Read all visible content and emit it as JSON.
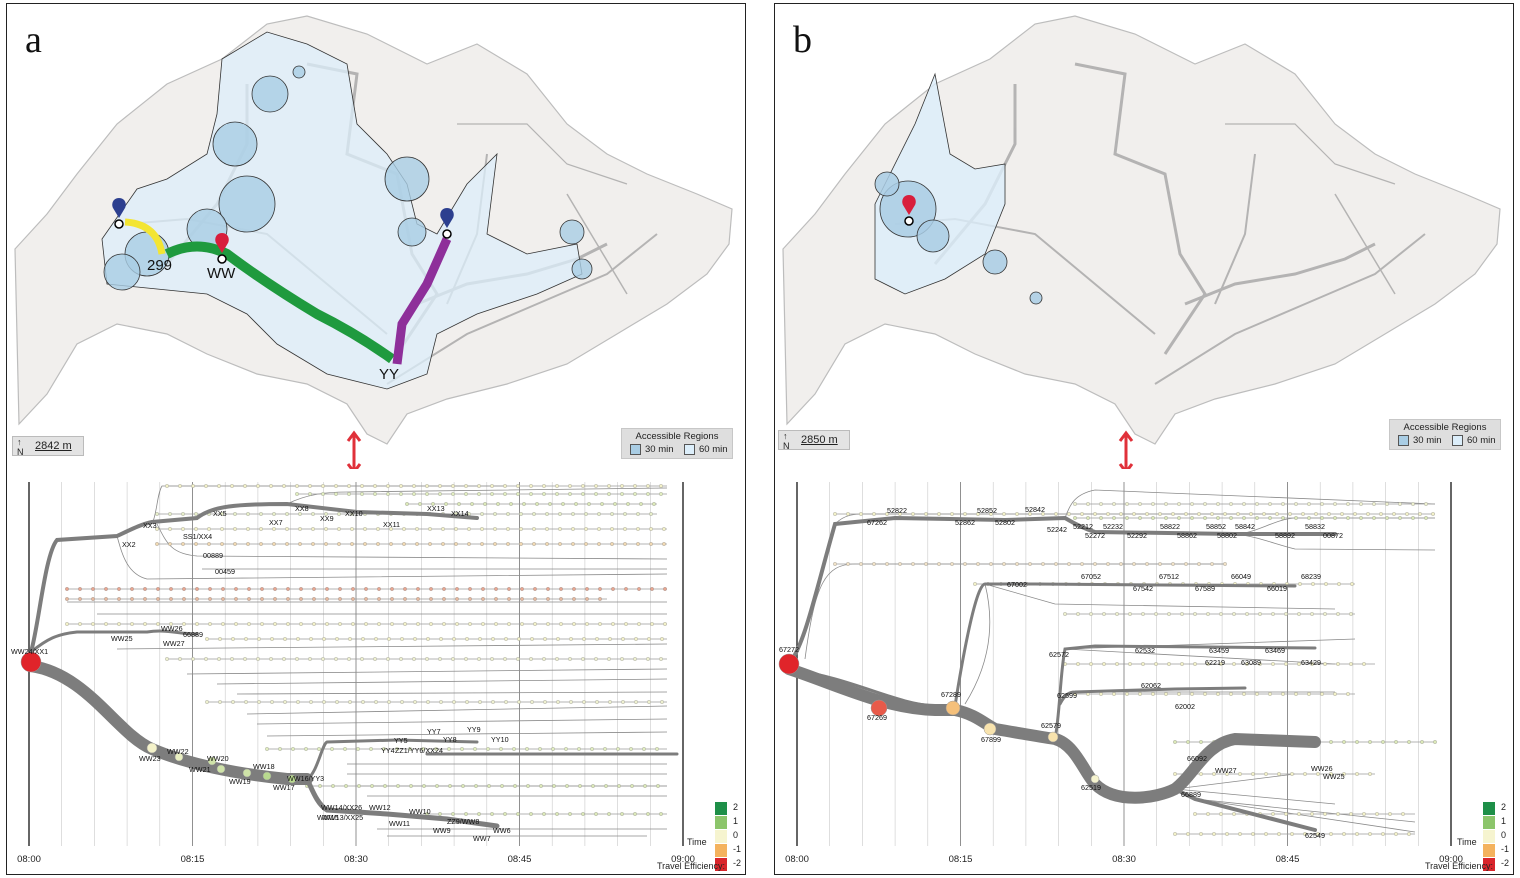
{
  "panels": [
    {
      "letter": "a",
      "scale": "2842 m",
      "north": "N",
      "legend": {
        "title": "Accessible Regions",
        "items": [
          "30 min",
          "60 min"
        ]
      },
      "map_labels": [
        "299",
        "WW",
        "YY"
      ],
      "axis": {
        "ticks": [
          "08:00",
          "08:15",
          "08:30",
          "08:45",
          "09:00"
        ],
        "time_label": "Time"
      },
      "efficiency": {
        "title": "Travel Efficiency:",
        "values": [
          "2",
          "1",
          "0",
          "-1",
          "-2"
        ]
      },
      "node_labels": [
        "WW24/XX1",
        "XX2",
        "XX3",
        "XX5",
        "XX7",
        "XX8",
        "XX9",
        "XX10",
        "XX11",
        "XX13",
        "XX14",
        "SS1/XX4",
        "00889",
        "00459",
        "WW26",
        "WW25",
        "WW27",
        "66889",
        "WW23",
        "WW22",
        "WW21",
        "WW20",
        "WW19",
        "WW18",
        "WW17",
        "WW16/YY3",
        "WW15",
        "WW14/XX26",
        "WW13/XX25",
        "WW12",
        "WW11",
        "WW10",
        "WW9",
        "ZZ9/WW8",
        "WW7",
        "WW6",
        "YY4",
        "YY5",
        "ZZ1/YY6/XX24",
        "YY7",
        "YY8",
        "YY9",
        "YY10"
      ]
    },
    {
      "letter": "b",
      "scale": "2850 m",
      "north": "N",
      "legend": {
        "title": "Accessible Regions",
        "items": [
          "30 min",
          "60 min"
        ]
      },
      "map_labels": [],
      "axis": {
        "ticks": [
          "08:00",
          "08:15",
          "08:30",
          "08:45",
          "09:00"
        ],
        "time_label": "Time"
      },
      "efficiency": {
        "title": "Travel Efficiency:",
        "values": [
          "2",
          "1",
          "0",
          "-1",
          "-2"
        ]
      },
      "node_labels": [
        "67272",
        "67262",
        "52822",
        "52862",
        "52852",
        "52802",
        "52842",
        "52242",
        "52212",
        "52272",
        "52232",
        "52292",
        "58822",
        "58862",
        "58852",
        "58802",
        "58842",
        "58892",
        "58832",
        "00872",
        "67002",
        "67052",
        "67542",
        "67512",
        "67589",
        "66049",
        "66019",
        "68239",
        "67269",
        "67289",
        "67899",
        "62579",
        "62572",
        "62532",
        "62219",
        "63459",
        "63089",
        "63469",
        "63429",
        "62599",
        "62062",
        "62002",
        "62519",
        "66092",
        "WW27",
        "WW26",
        "WW25",
        "66889",
        "62549"
      ]
    }
  ],
  "colors": {
    "region30": "#a9cde4",
    "region60": "#dceefa",
    "route_yellow": "#f3e533",
    "route_green": "#1f9a3e",
    "route_purple": "#8e2f9a",
    "pin_blue": "#2c3f8f",
    "pin_red": "#d81e3c",
    "eff": [
      "#1e8f48",
      "#8cc56b",
      "#f6f4cf",
      "#f4b25d",
      "#d9252b"
    ]
  }
}
